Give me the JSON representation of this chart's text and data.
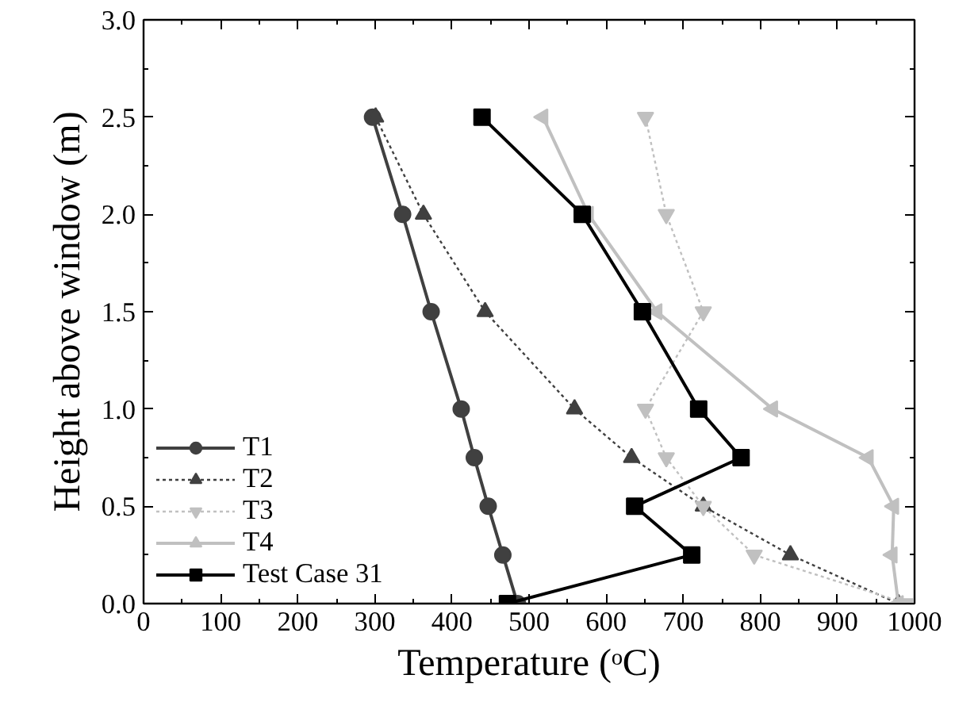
{
  "chart_data": {
    "type": "line",
    "xlabel": "Temperature (ᵒC)",
    "ylabel": "Height above window (m)",
    "xlim": [
      0,
      1000
    ],
    "ylim": [
      0,
      3
    ],
    "xticks": [
      0,
      100,
      200,
      300,
      400,
      500,
      600,
      700,
      800,
      900,
      1000
    ],
    "yticks": [
      {
        "value": 0,
        "label": "0.0"
      },
      0.5,
      {
        "value": 1,
        "label": "1.0"
      },
      1.5,
      {
        "value": 2,
        "label": "2.0"
      },
      2.5,
      {
        "value": 3,
        "label": "3.0"
      }
    ],
    "grid": false,
    "legend": "bottom left",
    "series": [
      {
        "name": "T1",
        "color": "#404040",
        "marker": "circle",
        "line_style": "solid",
        "x": [
          297,
          336,
          373,
          412,
          429,
          447,
          466,
          485
        ],
        "values": [
          2.5,
          2.0,
          1.5,
          1.0,
          0.75,
          0.5,
          0.25,
          0.0
        ]
      },
      {
        "name": "T2",
        "color": "#404040",
        "marker": "triangle",
        "line_style": "dotted",
        "x": [
          301,
          363,
          443,
          559,
          633,
          726,
          839,
          979
        ],
        "values": [
          2.5,
          2.0,
          1.5,
          1.0,
          0.75,
          0.5,
          0.25,
          0.0
        ]
      },
      {
        "name": "T3",
        "color": "#c0c0c0",
        "marker": "triangle_down",
        "line_style": "dotted",
        "x": [
          651,
          678,
          726,
          651,
          678,
          726,
          792,
          990
        ],
        "values": [
          2.5,
          2.0,
          1.5,
          1.0,
          0.75,
          0.5,
          0.25,
          0.0
        ]
      },
      {
        "name": "T4",
        "color": "#c0c0c0",
        "marker": "triangle_left",
        "line_style": "solid",
        "x": [
          518,
          577,
          666,
          816,
          940,
          973,
          971,
          979
        ],
        "values": [
          2.5,
          2.0,
          1.5,
          1.0,
          0.75,
          0.5,
          0.25,
          0.0
        ]
      },
      {
        "name": "Test Case 31",
        "color": "#000000",
        "marker": "square",
        "line_style": "solid",
        "x": [
          439,
          569,
          647,
          720,
          775,
          637,
          711,
          472
        ],
        "values": [
          2.5,
          2.0,
          1.5,
          1.0,
          0.75,
          0.5,
          0.25,
          0.0
        ]
      }
    ]
  }
}
